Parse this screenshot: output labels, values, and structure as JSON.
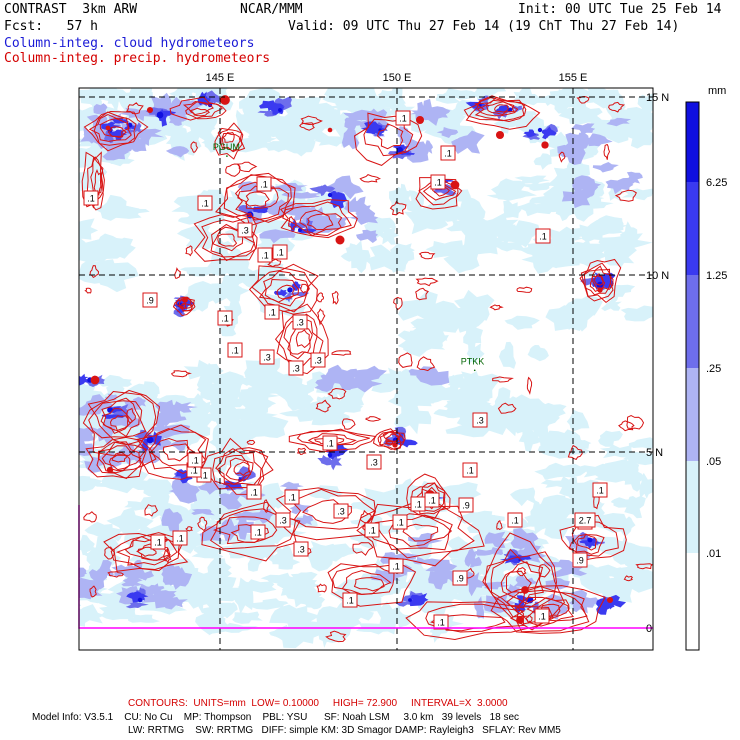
{
  "header": {
    "product": "CONTRAST  3km ARW",
    "center": "NCAR/MMM",
    "init": "Init: 00 UTC Tue 25 Feb 14",
    "fcst": "Fcst:   57 h",
    "valid": "Valid: 09 UTC Thu 27 Feb 14 (19 ChT Thu 27 Feb 14)",
    "field1": "Column-integ. cloud hydrometeors",
    "field2": "Column-integ. precip. hydrometeors"
  },
  "colors": {
    "field1": "#1a1ad6",
    "field2": "#d40000",
    "contour": "#d81414",
    "station": "#006400",
    "border": "#ff00ff"
  },
  "map": {
    "lon_labels": [
      "145 E",
      "150 E",
      "155 E"
    ],
    "lat_labels": [
      "15 N",
      "10 N",
      "5 N",
      "0"
    ],
    "stations": [
      {
        "name": "PGUM",
        "lon": 144.8,
        "lat": 13.5
      },
      {
        "name": "PTKK",
        "lon": 151.8,
        "lat": 7.45
      }
    ],
    "contour_labels": [
      ".1",
      ".1",
      ".1",
      ".1",
      ".1",
      ".1",
      ".1",
      ".1",
      ".1",
      ".3",
      ".3",
      ".3",
      ".1",
      ".3",
      ".1",
      ".1",
      ".1",
      ".3",
      ".9",
      ".1",
      ".1",
      ".1",
      ".1",
      ".1",
      ".3",
      ".1",
      ".1",
      ".1",
      ".3",
      ".1",
      ".1",
      ".9",
      ".1",
      ".1",
      ".3",
      ".3",
      ".9",
      ".1",
      ".3",
      ".1",
      ".1",
      "2.7",
      ".1",
      ".1",
      ".9",
      ".1",
      ".1",
      ".1"
    ]
  },
  "colorbar": {
    "unit": "mm",
    "labels": [
      "6.25",
      "1.25",
      ".25",
      ".05",
      ".01"
    ],
    "colors": [
      "#1010e0",
      "#3a3af0",
      "#6e6eec",
      "#aeb4f4",
      "#d8f2fa",
      "#ffffff"
    ]
  },
  "footer": {
    "contours": "CONTOURS:  UNITS=mm  LOW= 0.10000     HIGH= 72.900     INTERVAL=X  3.0000",
    "line1": "Model Info: V3.5.1    CU: No Cu    MP: Thompson    PBL: YSU      SF: Noah LSM     3.0 km   39 levels   18 sec",
    "line2": "LW: RRTMG    SW: RRTMG   DIFF: simple KM: 3D Smagor DAMP: Rayleigh3   SFLAY: Rev MM5"
  }
}
